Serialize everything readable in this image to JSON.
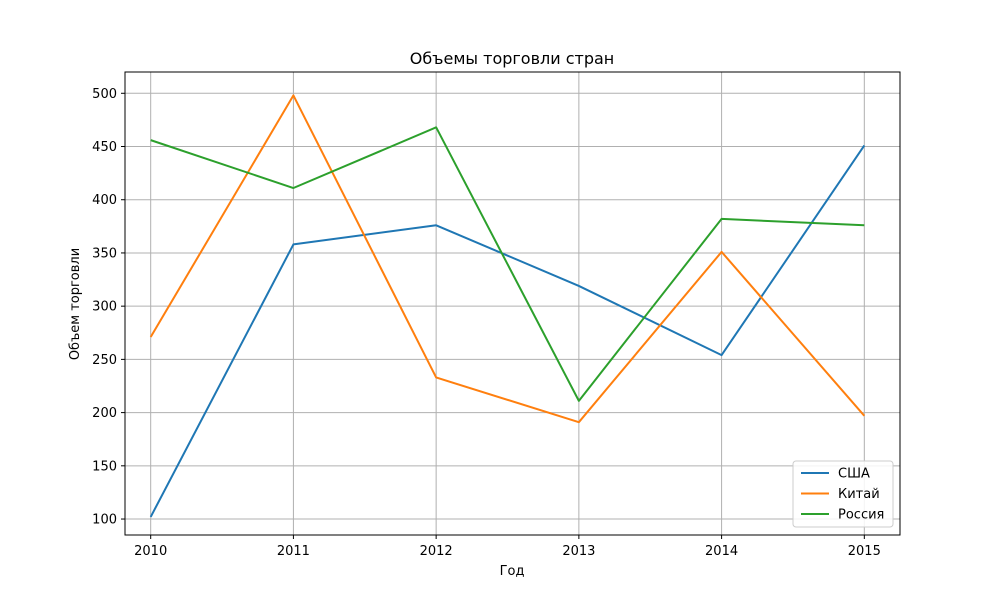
{
  "chart_data": {
    "type": "line",
    "title": "Объемы торговли стран",
    "xlabel": "Год",
    "ylabel": "Объем торговли",
    "x": [
      2010,
      2011,
      2012,
      2013,
      2014,
      2015
    ],
    "xlim": [
      2009.82,
      2015.25
    ],
    "ylim": [
      85,
      520
    ],
    "yticks": [
      100,
      150,
      200,
      250,
      300,
      350,
      400,
      450,
      500
    ],
    "grid": true,
    "legend_position": "lower-right",
    "series": [
      {
        "name": "США",
        "color": "#1f77b4",
        "values": [
          102,
          358,
          376,
          319,
          254,
          451
        ]
      },
      {
        "name": "Китай",
        "color": "#ff7f0e",
        "values": [
          271,
          498,
          233,
          191,
          351,
          197
        ]
      },
      {
        "name": "Россия",
        "color": "#2ca02c",
        "values": [
          456,
          411,
          468,
          211,
          382,
          376
        ]
      }
    ]
  }
}
